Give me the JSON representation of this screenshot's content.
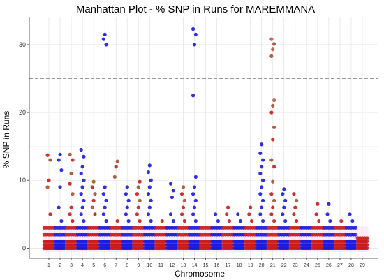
{
  "chart_data": {
    "type": "scatter",
    "title": "Manhattan Plot - % SNP in Runs for  MAREMMANA",
    "xlabel": "Chromosome",
    "ylabel": "% SNP in Runs",
    "ylim": [
      -1.5,
      34
    ],
    "y_ticks": [
      0,
      10,
      20,
      30
    ],
    "threshold": 25,
    "grid": true,
    "colors": {
      "blue": "#1a1ae0",
      "red": "#cc1a1a",
      "brown": "#a0522d",
      "threshold": "#999999",
      "grid": "#e6e6e6",
      "halo": "#f3c9f0"
    },
    "chromosomes": [
      {
        "label": "1",
        "values": [
          0,
          0.5,
          1,
          2,
          3,
          5,
          9,
          10,
          13,
          13.7
        ],
        "color": "red"
      },
      {
        "label": "2",
        "values": [
          0,
          0.5,
          1,
          2,
          3,
          4,
          6,
          9,
          11.5,
          13,
          13.8
        ],
        "color": "blue"
      },
      {
        "label": "3",
        "values": [
          0,
          0.5,
          1,
          2,
          3,
          4,
          5,
          6,
          8,
          9.5,
          11,
          13,
          13.8
        ],
        "color": "red"
      },
      {
        "label": "4",
        "values": [
          0,
          0.5,
          1,
          2,
          3,
          4,
          5,
          6,
          7,
          8,
          9,
          10,
          11,
          12,
          13.5,
          14.5
        ],
        "color": "blue"
      },
      {
        "label": "5",
        "values": [
          0,
          0.5,
          1,
          2,
          3,
          5,
          6,
          7,
          8,
          9,
          9.8
        ],
        "color": "red"
      },
      {
        "label": "6",
        "values": [
          0,
          0.5,
          1,
          2,
          3,
          4,
          5,
          6,
          7,
          8,
          9,
          30,
          30.8,
          31.5
        ],
        "color": "blue"
      },
      {
        "label": "7",
        "values": [
          0,
          0.5,
          1,
          2,
          3,
          4,
          10.5,
          12,
          12.8
        ],
        "color": "red"
      },
      {
        "label": "8",
        "values": [
          0,
          0.5,
          1,
          2,
          3,
          4,
          5,
          6,
          7,
          8,
          9
        ],
        "color": "blue"
      },
      {
        "label": "9",
        "values": [
          0,
          0.5,
          1,
          2,
          3,
          4,
          5,
          6,
          7,
          8,
          9,
          9.8
        ],
        "color": "red"
      },
      {
        "label": "10",
        "values": [
          0,
          0.5,
          1,
          2,
          3,
          4,
          5,
          6,
          7,
          8,
          9,
          10,
          11.2,
          12.2
        ],
        "color": "blue"
      },
      {
        "label": "11",
        "values": [
          0,
          0.5,
          1,
          2,
          3,
          4
        ],
        "color": "red"
      },
      {
        "label": "12",
        "values": [
          0,
          0.5,
          1,
          2,
          3,
          4,
          5,
          7.5,
          8.5,
          9.5
        ],
        "color": "blue"
      },
      {
        "label": "13",
        "values": [
          0,
          0.5,
          1,
          2,
          3,
          4,
          5,
          6,
          7,
          8,
          9
        ],
        "color": "red"
      },
      {
        "label": "14",
        "values": [
          0,
          0.5,
          1,
          2,
          3,
          4,
          5,
          6,
          7,
          8,
          9,
          10.5,
          22.5,
          30,
          31.5,
          32.3
        ],
        "color": "blue"
      },
      {
        "label": "15",
        "values": [
          0,
          0.5,
          1,
          2,
          3
        ],
        "color": "red"
      },
      {
        "label": "16",
        "values": [
          0,
          0.5,
          1,
          2,
          3,
          4,
          5
        ],
        "color": "blue"
      },
      {
        "label": "17",
        "values": [
          0,
          0.5,
          1,
          2,
          3,
          4,
          5,
          6
        ],
        "color": "red"
      },
      {
        "label": "18",
        "values": [
          0,
          0.5,
          1,
          2,
          3,
          4,
          5
        ],
        "color": "blue"
      },
      {
        "label": "19",
        "values": [
          0,
          0.5,
          1,
          2,
          3,
          4,
          5,
          6
        ],
        "color": "red"
      },
      {
        "label": "20",
        "values": [
          0,
          0.5,
          1,
          2,
          3,
          4,
          5,
          6,
          7,
          8,
          9,
          10,
          11,
          12,
          13,
          14,
          15.3
        ],
        "color": "blue"
      },
      {
        "label": "21",
        "values": [
          0,
          0.5,
          1,
          2,
          3,
          4,
          5,
          6,
          7,
          8,
          9.8,
          12,
          13,
          16,
          17.8,
          20,
          21,
          21.8,
          28.3,
          29.3,
          30.1,
          30.8
        ],
        "color": "red"
      },
      {
        "label": "22",
        "values": [
          0,
          0.5,
          1,
          2,
          3,
          4,
          5,
          6,
          7,
          8,
          8.7
        ],
        "color": "blue"
      },
      {
        "label": "23",
        "values": [
          0,
          0.5,
          1,
          2,
          3,
          4,
          5,
          6,
          7,
          8
        ],
        "color": "red"
      },
      {
        "label": "24",
        "values": [
          0,
          0.5,
          1,
          2,
          3
        ],
        "color": "blue"
      },
      {
        "label": "25",
        "values": [
          0,
          0.5,
          1,
          2,
          3,
          4,
          5,
          6.5
        ],
        "color": "red"
      },
      {
        "label": "26",
        "values": [
          0,
          0.5,
          1,
          2,
          3,
          4,
          5,
          6.5
        ],
        "color": "blue"
      },
      {
        "label": "27",
        "values": [
          0,
          0.5,
          1,
          2,
          3,
          4
        ],
        "color": "red"
      },
      {
        "label": "28",
        "values": [
          0,
          0.5,
          1,
          2,
          3,
          4,
          5
        ],
        "color": "blue"
      },
      {
        "label": "29",
        "values": [
          0,
          0.5,
          1,
          1.5
        ],
        "color": "red"
      }
    ]
  }
}
